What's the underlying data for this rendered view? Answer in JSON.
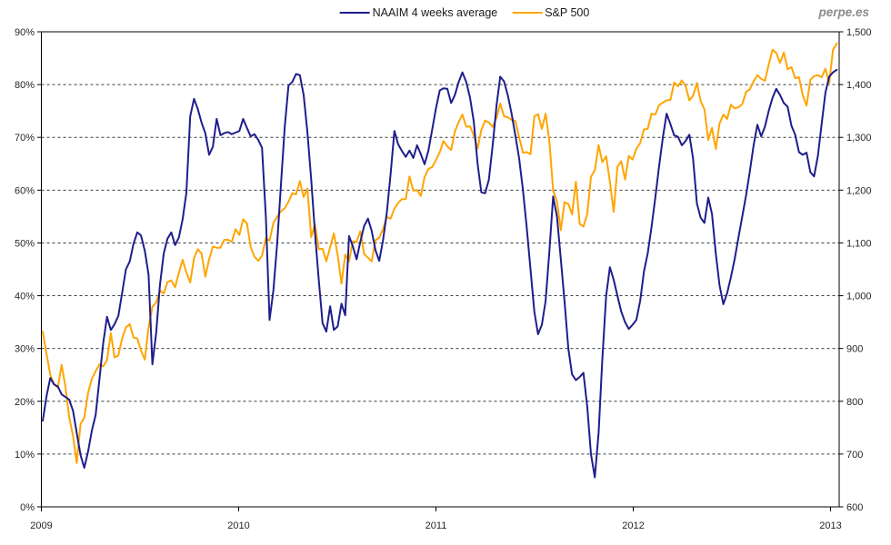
{
  "page": {
    "watermark": "perpe.es"
  },
  "legend": {
    "items": [
      {
        "label": "NAAIM 4 weeks average",
        "color": "#1e1e8c"
      },
      {
        "label": "S&P 500",
        "color": "#ffa500"
      }
    ]
  },
  "colors": {
    "naaim_line": "#1e1e8c",
    "sp500_line": "#ffa500",
    "gridline": "#3c3c3c",
    "axis": "#000000",
    "tick_text": "#262629"
  },
  "chart_data": {
    "type": "line",
    "title": "",
    "xlabel": "",
    "ylabel_left": "",
    "ylabel_right": "",
    "grid": "horizontal dashed at each left-axis tick",
    "legend_position": "top-center",
    "x_axis": {
      "tick_labels": [
        "2009",
        "2010",
        "2011",
        "2012",
        "2013"
      ],
      "sampling": "weekly"
    },
    "y_axis_left": {
      "format": "percent",
      "min": 0,
      "max": 90,
      "tick_labels": [
        "0%",
        "10%",
        "20%",
        "30%",
        "40%",
        "50%",
        "60%",
        "70%",
        "80%",
        "90%"
      ]
    },
    "y_axis_right": {
      "format": "index",
      "min": 600,
      "max": 1500,
      "tick_labels": [
        "600",
        "700",
        "800",
        "900",
        "1,000",
        "1,100",
        "1,200",
        "1,300",
        "1,400",
        "1,500"
      ]
    },
    "series": [
      {
        "name": "NAAIM 4 weeks average",
        "axis": "left",
        "unit": "%",
        "color": "#1e1e8c",
        "values": [
          16.3,
          21,
          24.4,
          23.2,
          22.8,
          21.3,
          20.8,
          20.3,
          18.2,
          14,
          9.8,
          7.4,
          10.5,
          14.5,
          17.4,
          24.2,
          31,
          36,
          33.5,
          34.6,
          36.2,
          40.5,
          45,
          46.5,
          49.8,
          52,
          51.4,
          48.5,
          44,
          27,
          33,
          42,
          48,
          50.8,
          52,
          49.6,
          51,
          54.5,
          59.5,
          74,
          77.3,
          75.4,
          72.8,
          70.8,
          66.7,
          68.2,
          73.5,
          70.4,
          70.8,
          71,
          70.6,
          70.9,
          71.2,
          73.5,
          71.8,
          70.2,
          70.6,
          69.5,
          68,
          55,
          35.4,
          41,
          50,
          61,
          72,
          79.8,
          80.5,
          82,
          81.8,
          78,
          71,
          62,
          52,
          43,
          34.8,
          33.2,
          38,
          33.5,
          34.2,
          38.5,
          36.3,
          51.3,
          49.4,
          46.9,
          50.2,
          53.2,
          54.6,
          52.3,
          48.6,
          46.6,
          50.5,
          55.8,
          63,
          71.2,
          68.7,
          67.4,
          66.3,
          67.5,
          66.1,
          68.5,
          66.8,
          64.9,
          67.5,
          71.5,
          75.5,
          78.9,
          79.3,
          79.2,
          76.5,
          78,
          80.5,
          82.3,
          80.5,
          77.5,
          73,
          65,
          59.6,
          59.4,
          62,
          68.5,
          76,
          81.5,
          80.6,
          78,
          74.5,
          70.3,
          66,
          60,
          53,
          45,
          37,
          32.7,
          34.5,
          39,
          48.5,
          58.8,
          55,
          47,
          39,
          30,
          25.1,
          24,
          24.6,
          25.4,
          19,
          10,
          5.6,
          14,
          28,
          40,
          45.4,
          43,
          40,
          37,
          35,
          33.7,
          34.5,
          35.4,
          39,
          44.6,
          48,
          53,
          58.5,
          64.5,
          70,
          74.5,
          72.5,
          70.4,
          70.1,
          68.5,
          69.3,
          70.5,
          66,
          57.5,
          54.8,
          53.8,
          58.6,
          55.5,
          48,
          42,
          38.4,
          40.5,
          43.5,
          47,
          51,
          55,
          59,
          63.5,
          68.5,
          72.4,
          70.2,
          72,
          75,
          77.5,
          79.2,
          78,
          76.5,
          75.8,
          72.2,
          70.5,
          67.2,
          66.7,
          67.1,
          63.4,
          62.6,
          66.5,
          72.5,
          78.5,
          81.5,
          82.3,
          82.8
        ]
      },
      {
        "name": "S&P 500",
        "axis": "right",
        "unit": "index points",
        "color": "#ffa500",
        "values": [
          932,
          890,
          850,
          832,
          826,
          869,
          827,
          770,
          735,
          683,
          757,
          769,
          816,
          843,
          857,
          870,
          866,
          878,
          929,
          883,
          887,
          919,
          940,
          946,
          921,
          919,
          896,
          879,
          940,
          979,
          987,
          1010,
          1004,
          1026,
          1029,
          1016,
          1043,
          1068,
          1044,
          1025,
          1071,
          1088,
          1080,
          1036,
          1069,
          1093,
          1091,
          1091,
          1106,
          1106,
          1102,
          1126,
          1115,
          1145,
          1137,
          1092,
          1074,
          1066,
          1076,
          1109,
          1104,
          1138,
          1150,
          1160,
          1166,
          1178,
          1194,
          1192,
          1217,
          1187,
          1203,
          1111,
          1136,
          1088,
          1089,
          1065,
          1092,
          1118,
          1077,
          1023,
          1078,
          1065,
          1103,
          1102,
          1122,
          1079,
          1072,
          1065,
          1105,
          1110,
          1126,
          1149,
          1146,
          1165,
          1176,
          1183,
          1183,
          1226,
          1199,
          1200,
          1189,
          1225,
          1240,
          1244,
          1257,
          1272,
          1293,
          1283,
          1276,
          1311,
          1329,
          1343,
          1320,
          1321,
          1304,
          1279,
          1314,
          1332,
          1328,
          1320,
          1337,
          1364,
          1340,
          1338,
          1333,
          1331,
          1300,
          1271,
          1272,
          1268,
          1340,
          1344,
          1316,
          1345,
          1292,
          1199,
          1179,
          1124,
          1177,
          1174,
          1154,
          1216,
          1136,
          1131,
          1155,
          1225,
          1238,
          1285,
          1253,
          1264,
          1216,
          1159,
          1244,
          1255,
          1220,
          1265,
          1258,
          1278,
          1289,
          1315,
          1316,
          1345,
          1343,
          1361,
          1366,
          1370,
          1371,
          1404,
          1397,
          1408,
          1398,
          1370,
          1379,
          1403,
          1369,
          1353,
          1295,
          1318,
          1278,
          1326,
          1343,
          1335,
          1362,
          1355,
          1357,
          1363,
          1386,
          1391,
          1406,
          1418,
          1411,
          1407,
          1438,
          1466,
          1460,
          1441,
          1461,
          1429,
          1433,
          1412,
          1414,
          1380,
          1360,
          1409,
          1416,
          1418,
          1414,
          1430,
          1402,
          1466,
          1478
        ]
      }
    ]
  }
}
